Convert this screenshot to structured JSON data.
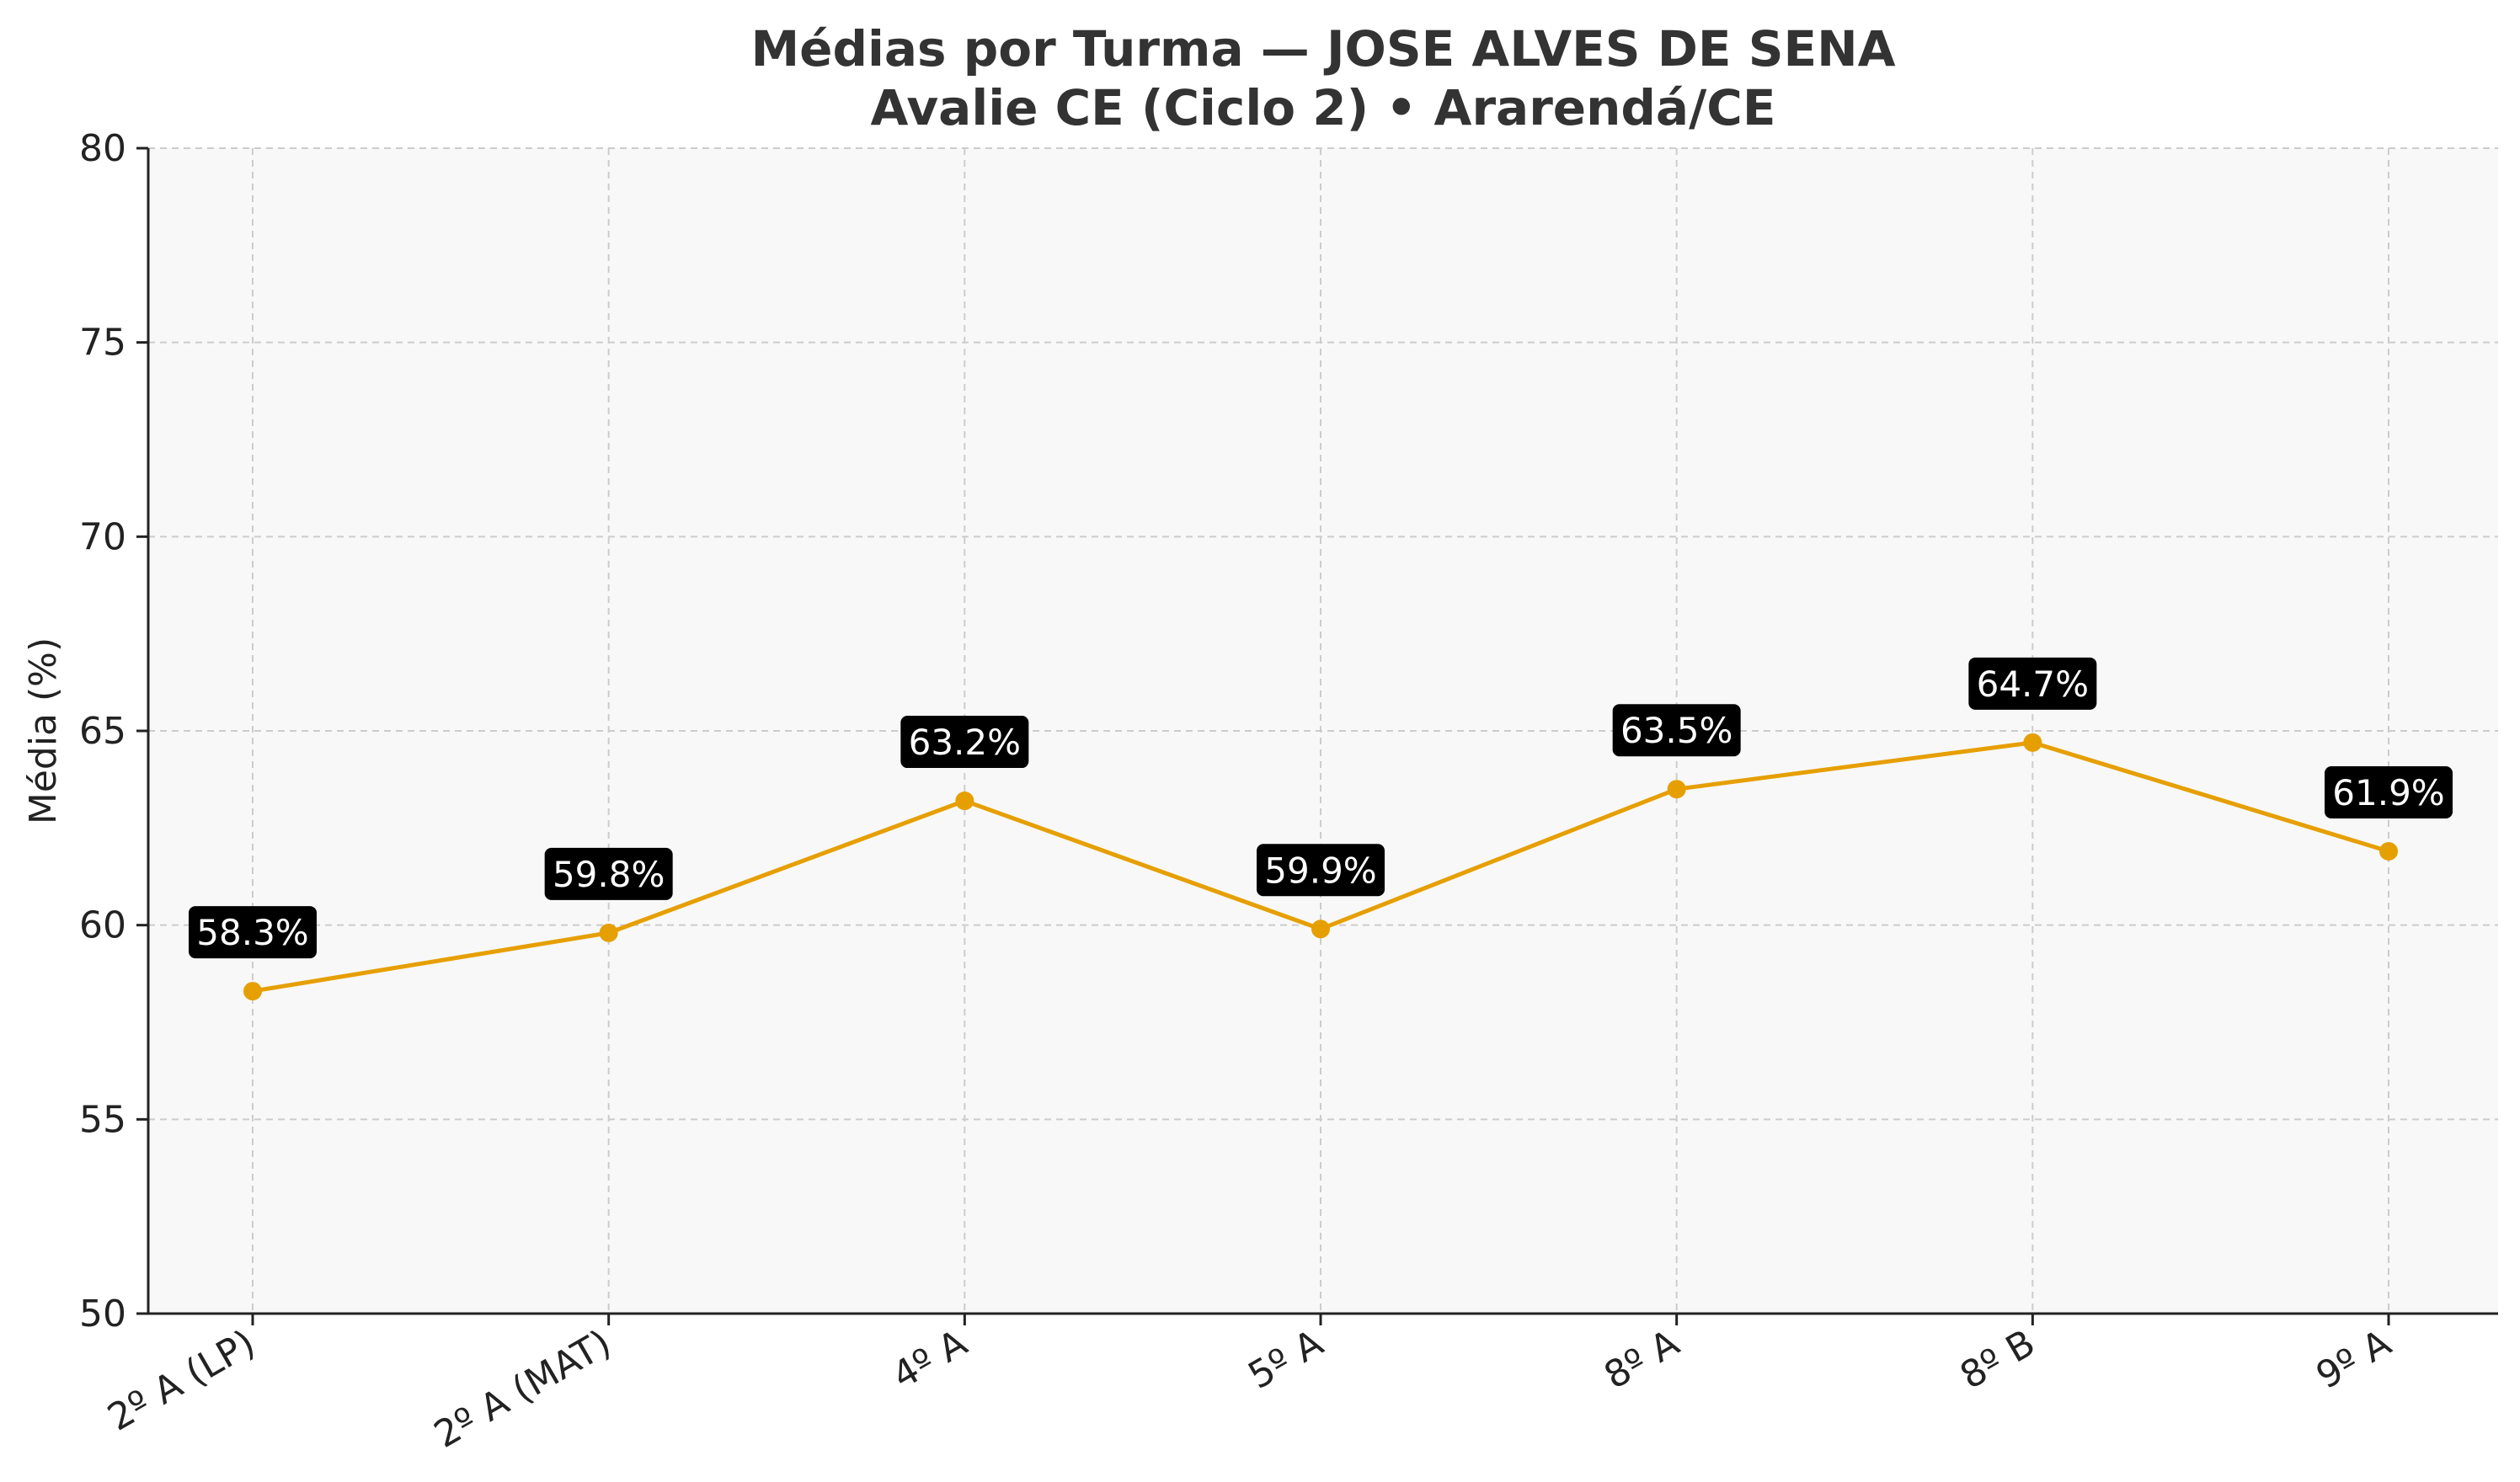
{
  "chart_data": {
    "type": "line",
    "title": "Médias por Turma — JOSE ALVES DE SENA",
    "subtitle": "Avalie CE (Ciclo 2) • Ararendá/CE",
    "xlabel": "",
    "ylabel": "Média (%)",
    "categories": [
      "2º A (LP)",
      "2º A (MAT)",
      "4º A",
      "5º A",
      "8º A",
      "8º B",
      "9º A"
    ],
    "values": [
      58.3,
      59.8,
      63.2,
      59.9,
      63.5,
      64.7,
      61.9
    ],
    "data_labels": [
      "58.3%",
      "59.8%",
      "63.2%",
      "59.9%",
      "63.5%",
      "64.7%",
      "61.9%"
    ],
    "ylim": [
      50,
      80
    ],
    "yticks": [
      50,
      55,
      60,
      65,
      70,
      75,
      80
    ],
    "grid": true,
    "line_color": "#E69F00",
    "plot_background": "#F8F8F8",
    "label_box_color": "#000000"
  }
}
